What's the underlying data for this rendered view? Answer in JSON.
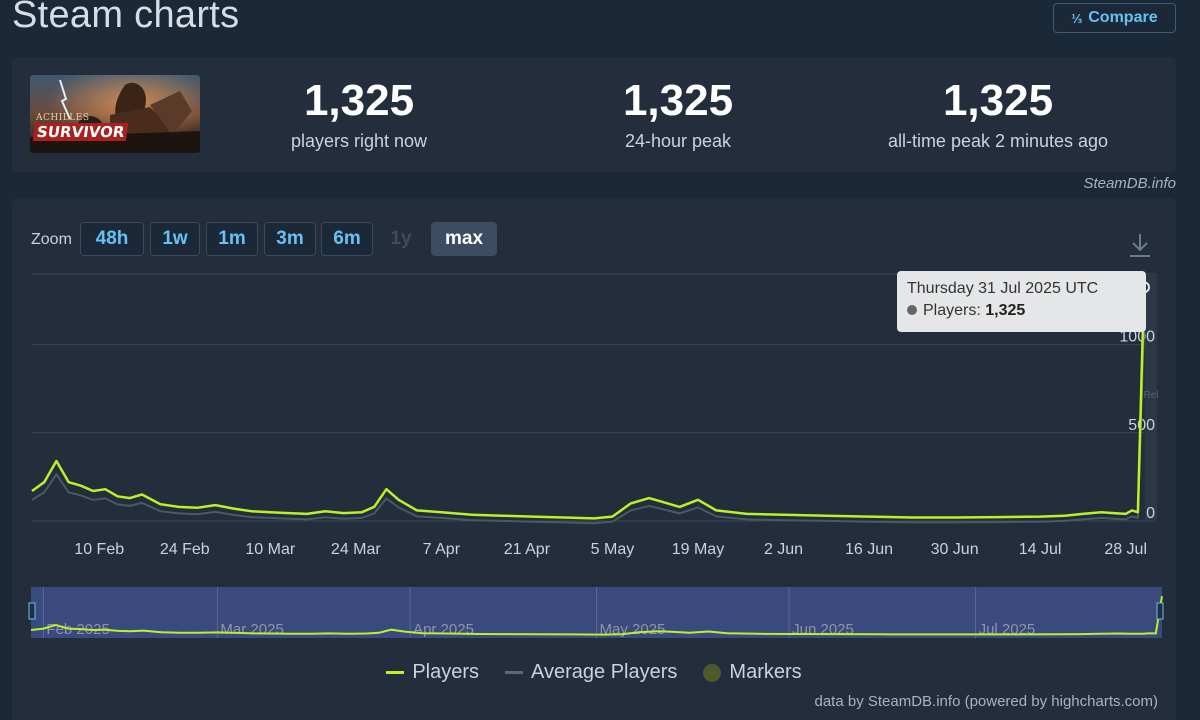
{
  "header": {
    "title": "Steam charts",
    "compare_label": "Compare",
    "compare_icon": "⅓"
  },
  "stats": [
    {
      "value": "1,325",
      "label": "players right now"
    },
    {
      "value": "1,325",
      "label": "24-hour peak"
    },
    {
      "value": "1,325",
      "label": "all-time peak 2 minutes ago"
    }
  ],
  "game": {
    "thumb_text_top": "ACHILLES",
    "thumb_text_bottom": "SURVIVOR"
  },
  "credit_top": "SteamDB.info",
  "zoom": {
    "label": "Zoom",
    "buttons": [
      {
        "label": "48h",
        "state": "normal"
      },
      {
        "label": "1w",
        "state": "normal"
      },
      {
        "label": "1m",
        "state": "normal"
      },
      {
        "label": "3m",
        "state": "normal"
      },
      {
        "label": "6m",
        "state": "normal"
      },
      {
        "label": "1y",
        "state": "disabled"
      },
      {
        "label": "max",
        "state": "active"
      }
    ]
  },
  "tooltip": {
    "date": "Thursday 31 Jul 2025 UTC",
    "series_label": "Players: ",
    "value": "1,325"
  },
  "rail_label": "Rel",
  "legend": [
    {
      "name": "Players",
      "color": "#b9f227",
      "kind": "line"
    },
    {
      "name": "Average Players",
      "color": "#5a6a7b",
      "kind": "line"
    },
    {
      "name": "Markers",
      "color": "#4d5a2a",
      "kind": "dot"
    }
  ],
  "credit_bottom": "data by SteamDB.info (powered by highcharts.com)",
  "chart_data": {
    "type": "line",
    "x_range": [
      "2025-01-30",
      "2025-07-31"
    ],
    "y_range": [
      0,
      1400
    ],
    "x_ticks": [
      "10 Feb",
      "24 Feb",
      "10 Mar",
      "24 Mar",
      "7 Apr",
      "21 Apr",
      "5 May",
      "19 May",
      "2 Jun",
      "16 Jun",
      "30 Jun",
      "14 Jul",
      "28 Jul"
    ],
    "x_tick_dates": [
      "2025-02-10",
      "2025-02-24",
      "2025-03-10",
      "2025-03-24",
      "2025-04-07",
      "2025-04-21",
      "2025-05-05",
      "2025-05-19",
      "2025-06-02",
      "2025-06-16",
      "2025-06-30",
      "2025-07-14",
      "2025-07-28"
    ],
    "y_ticks": [
      0,
      500,
      1000
    ],
    "grid": true,
    "navigator_labels": [
      "Feb 2025",
      "Mar 2025",
      "Apr 2025",
      "May 2025",
      "Jun 2025",
      "Jul 2025"
    ],
    "navigator_label_dates": [
      "2025-02-01",
      "2025-03-01",
      "2025-04-01",
      "2025-05-01",
      "2025-06-01",
      "2025-07-01"
    ],
    "series": [
      {
        "name": "Players",
        "color": "#b9f227",
        "x": [
          "2025-01-30",
          "2025-02-01",
          "2025-02-03",
          "2025-02-05",
          "2025-02-07",
          "2025-02-09",
          "2025-02-11",
          "2025-02-13",
          "2025-02-15",
          "2025-02-17",
          "2025-02-20",
          "2025-02-23",
          "2025-02-26",
          "2025-03-01",
          "2025-03-04",
          "2025-03-07",
          "2025-03-10",
          "2025-03-13",
          "2025-03-16",
          "2025-03-19",
          "2025-03-22",
          "2025-03-25",
          "2025-03-27",
          "2025-03-29",
          "2025-03-31",
          "2025-04-03",
          "2025-04-07",
          "2025-04-12",
          "2025-04-17",
          "2025-04-22",
          "2025-04-27",
          "2025-05-02",
          "2025-05-05",
          "2025-05-08",
          "2025-05-11",
          "2025-05-13",
          "2025-05-16",
          "2025-05-19",
          "2025-05-22",
          "2025-05-27",
          "2025-06-02",
          "2025-06-09",
          "2025-06-16",
          "2025-06-23",
          "2025-06-30",
          "2025-07-07",
          "2025-07-14",
          "2025-07-18",
          "2025-07-21",
          "2025-07-24",
          "2025-07-26",
          "2025-07-28",
          "2025-07-29",
          "2025-07-30",
          "2025-07-31"
        ],
        "values": [
          170,
          220,
          340,
          220,
          200,
          170,
          180,
          140,
          130,
          150,
          95,
          80,
          75,
          90,
          70,
          55,
          50,
          45,
          40,
          55,
          45,
          50,
          80,
          180,
          120,
          60,
          50,
          35,
          30,
          25,
          20,
          15,
          25,
          100,
          130,
          110,
          80,
          120,
          60,
          40,
          35,
          30,
          25,
          20,
          20,
          22,
          25,
          30,
          40,
          50,
          45,
          40,
          60,
          50,
          1325
        ]
      }
    ]
  }
}
